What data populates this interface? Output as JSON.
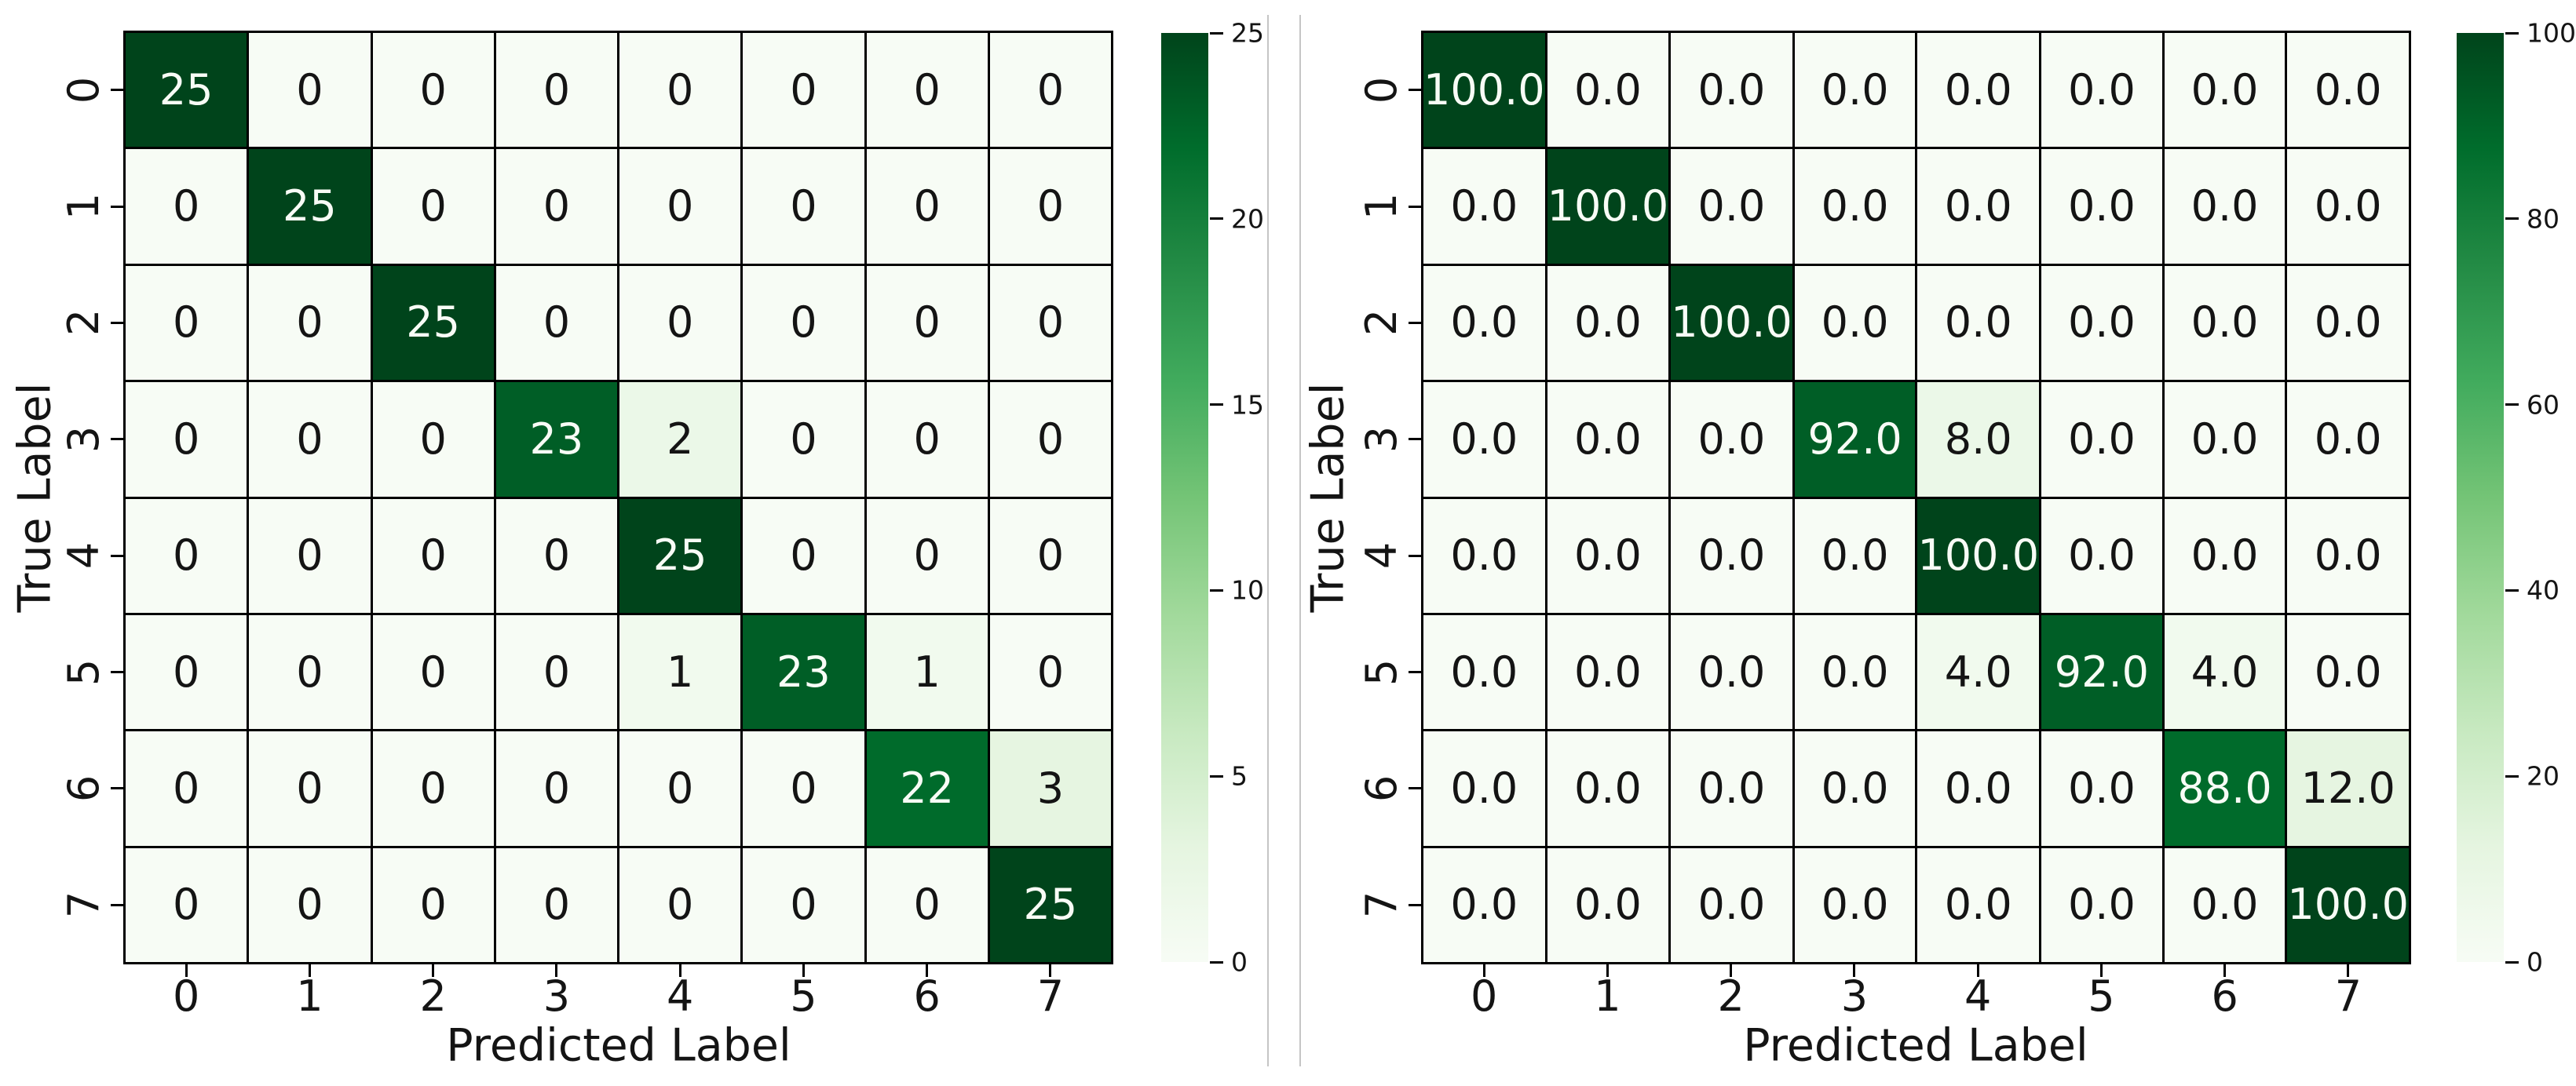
{
  "ui": {
    "background": "#ffffff",
    "divider_color": "#c5c5c5",
    "grid_line_color": "#000000",
    "text_on_dark_cells": "#f8fcf6",
    "text_on_light_cells": "#141414",
    "colormap_name": "Greens",
    "colormap_stops": [
      "#f7fcf5",
      "#e5f5e0",
      "#c7e9c0",
      "#a1d99b",
      "#74c476",
      "#41ab5d",
      "#238b45",
      "#006d2c",
      "#00441b"
    ]
  },
  "chart_data": [
    {
      "type": "heatmap",
      "name": "confusion-matrix-counts",
      "title": "",
      "xlabel": "Predicted Label",
      "ylabel": "True Label",
      "x_tick_labels": [
        "0",
        "1",
        "2",
        "3",
        "4",
        "5",
        "6",
        "7"
      ],
      "y_tick_labels": [
        "0",
        "1",
        "2",
        "3",
        "4",
        "5",
        "6",
        "7"
      ],
      "values": [
        [
          25,
          0,
          0,
          0,
          0,
          0,
          0,
          0
        ],
        [
          0,
          25,
          0,
          0,
          0,
          0,
          0,
          0
        ],
        [
          0,
          0,
          25,
          0,
          0,
          0,
          0,
          0
        ],
        [
          0,
          0,
          0,
          23,
          2,
          0,
          0,
          0
        ],
        [
          0,
          0,
          0,
          0,
          25,
          0,
          0,
          0
        ],
        [
          0,
          0,
          0,
          0,
          1,
          23,
          1,
          0
        ],
        [
          0,
          0,
          0,
          0,
          0,
          0,
          22,
          3
        ],
        [
          0,
          0,
          0,
          0,
          0,
          0,
          0,
          25
        ]
      ],
      "vmin": 0,
      "vmax": 25,
      "value_format": "integer",
      "colorbar_ticks": [
        0,
        5,
        10,
        15,
        20,
        25
      ],
      "legend_position": "right-colorbar",
      "grid": "on"
    },
    {
      "type": "heatmap",
      "name": "confusion-matrix-percent",
      "title": "",
      "xlabel": "Predicted Label",
      "ylabel": "True Label",
      "x_tick_labels": [
        "0",
        "1",
        "2",
        "3",
        "4",
        "5",
        "6",
        "7"
      ],
      "y_tick_labels": [
        "0",
        "1",
        "2",
        "3",
        "4",
        "5",
        "6",
        "7"
      ],
      "values": [
        [
          100,
          0,
          0,
          0,
          0,
          0,
          0,
          0
        ],
        [
          0,
          100,
          0,
          0,
          0,
          0,
          0,
          0
        ],
        [
          0,
          0,
          100,
          0,
          0,
          0,
          0,
          0
        ],
        [
          0,
          0,
          0,
          92,
          8,
          0,
          0,
          0
        ],
        [
          0,
          0,
          0,
          0,
          100,
          0,
          0,
          0
        ],
        [
          0,
          0,
          0,
          0,
          4,
          92,
          4,
          0
        ],
        [
          0,
          0,
          0,
          0,
          0,
          0,
          88,
          12
        ],
        [
          0,
          0,
          0,
          0,
          0,
          0,
          0,
          100
        ]
      ],
      "vmin": 0,
      "vmax": 100,
      "value_format": "one_decimal",
      "colorbar_ticks": [
        0,
        20,
        40,
        60,
        80,
        100
      ],
      "legend_position": "right-colorbar",
      "grid": "on"
    }
  ]
}
